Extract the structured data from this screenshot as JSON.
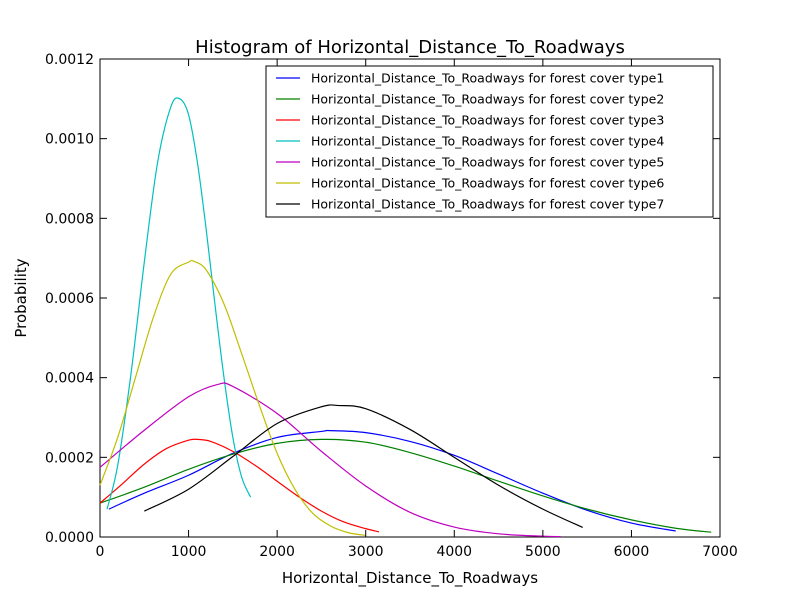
{
  "chart_data": {
    "type": "line",
    "title": "Histogram of Horizontal_Distance_To_Roadways",
    "xlabel": "Horizontal_Distance_To_Roadways",
    "ylabel": "Probability",
    "xlim": [
      0,
      7000
    ],
    "ylim": [
      0,
      0.0012
    ],
    "xticks": [
      0,
      1000,
      2000,
      3000,
      4000,
      5000,
      6000,
      7000
    ],
    "xtick_labels": [
      "0",
      "1000",
      "2000",
      "3000",
      "4000",
      "5000",
      "6000",
      "7000"
    ],
    "yticks": [
      0,
      0.0002,
      0.0004,
      0.0006,
      0.0008,
      0.001,
      0.0012
    ],
    "ytick_labels": [
      "0.0000",
      "0.0002",
      "0.0004",
      "0.0006",
      "0.0008",
      "0.0010",
      "0.0012"
    ],
    "grid": false,
    "legend_position": "top-right",
    "series": [
      {
        "name": "Horizontal_Distance_To_Roadways for forest cover type1",
        "color": "#0000ff",
        "x": [
          100,
          500,
          1000,
          1500,
          2000,
          2500,
          2600,
          3000,
          3500,
          4000,
          4500,
          5000,
          5500,
          6000,
          6500
        ],
        "y": [
          7e-05,
          0.00011,
          0.000155,
          0.00021,
          0.00025,
          0.000265,
          0.000267,
          0.000262,
          0.00024,
          0.000205,
          0.000158,
          0.00011,
          6.7e-05,
          3.5e-05,
          1.5e-05
        ]
      },
      {
        "name": "Horizontal_Distance_To_Roadways for forest cover type2",
        "color": "#008000",
        "x": [
          0,
          500,
          1000,
          1500,
          2000,
          2500,
          3000,
          3500,
          4000,
          4500,
          5000,
          5500,
          6000,
          6500,
          6900
        ],
        "y": [
          8.5e-05,
          0.000125,
          0.00017,
          0.000208,
          0.000235,
          0.000245,
          0.000238,
          0.000212,
          0.000178,
          0.00014,
          0.000103,
          7e-05,
          4.3e-05,
          2.2e-05,
          1.2e-05
        ]
      },
      {
        "name": "Horizontal_Distance_To_Roadways for forest cover type3",
        "color": "#ff0000",
        "x": [
          0,
          250,
          500,
          750,
          1000,
          1100,
          1250,
          1500,
          1750,
          2000,
          2250,
          2500,
          2750,
          3000,
          3150
        ],
        "y": [
          8.5e-05,
          0.000133,
          0.000183,
          0.000222,
          0.000243,
          0.000245,
          0.00024,
          0.000215,
          0.00018,
          0.00014,
          0.0001,
          6.5e-05,
          3.8e-05,
          2.1e-05,
          1.3e-05
        ]
      },
      {
        "name": "Horizontal_Distance_To_Roadways for forest cover type4",
        "color": "#00bfbf",
        "x": [
          80,
          200,
          350,
          500,
          650,
          800,
          900,
          1000,
          1100,
          1200,
          1300,
          1400,
          1500,
          1600,
          1700
        ],
        "y": [
          7e-05,
          0.00018,
          0.00041,
          0.00069,
          0.00094,
          0.00108,
          0.0011,
          0.00106,
          0.00094,
          0.00077,
          0.00058,
          0.0004,
          0.00025,
          0.00015,
          0.0001
        ]
      },
      {
        "name": "Horizontal_Distance_To_Roadways for forest cover type5",
        "color": "#bf00bf",
        "x": [
          0,
          500,
          1000,
          1330,
          1500,
          2000,
          2500,
          3000,
          3500,
          4000,
          4500,
          5000,
          5200
        ],
        "y": [
          0.000175,
          0.000268,
          0.000352,
          0.000383,
          0.000378,
          0.00031,
          0.000215,
          0.000128,
          6.2e-05,
          2.5e-05,
          8e-06,
          2e-06,
          1e-06
        ]
      },
      {
        "name": "Horizontal_Distance_To_Roadways for forest cover type6",
        "color": "#bfbf00",
        "x": [
          0,
          200,
          400,
          600,
          800,
          1000,
          1060,
          1200,
          1400,
          1600,
          1800,
          2000,
          2200,
          2400,
          2600,
          2800,
          3000
        ],
        "y": [
          0.00013,
          0.00025,
          0.0004,
          0.00055,
          0.00066,
          0.00069,
          0.000692,
          0.00067,
          0.000585,
          0.00046,
          0.00033,
          0.00021,
          0.00012,
          6e-05,
          2.8e-05,
          1.1e-05,
          4e-06
        ]
      },
      {
        "name": "Horizontal_Distance_To_Roadways for forest cover type7",
        "color": "#000000",
        "x": [
          500,
          1000,
          1500,
          2000,
          2500,
          2700,
          3000,
          3500,
          4000,
          4500,
          5000,
          5450
        ],
        "y": [
          6.5e-05,
          0.00012,
          0.000202,
          0.000285,
          0.000327,
          0.00033,
          0.000322,
          0.00027,
          0.0002,
          0.00013,
          7e-05,
          2.4e-05
        ]
      }
    ]
  }
}
